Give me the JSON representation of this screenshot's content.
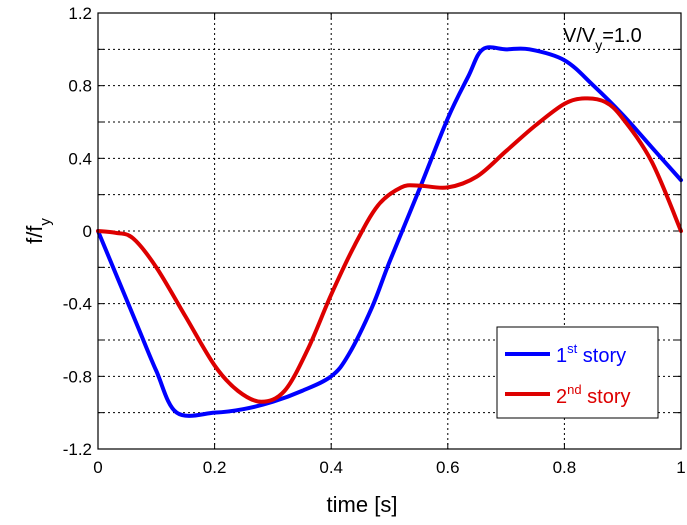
{
  "chart_data": {
    "type": "line",
    "title": "",
    "xlabel": {
      "main": "time [s]"
    },
    "ylabel": {
      "main": "f/f",
      "sub": "y"
    },
    "xlim": [
      0,
      1
    ],
    "ylim": [
      -1.2,
      1.2
    ],
    "xticks": [
      0,
      0.2,
      0.4,
      0.6,
      0.8,
      1
    ],
    "xtick_labels": [
      "0",
      "0.2",
      "0.4",
      "0.6",
      "0.8",
      "1"
    ],
    "yticks": [
      -1.2,
      -1.0,
      -0.8,
      -0.6,
      -0.4,
      -0.2,
      0,
      0.2,
      0.4,
      0.6,
      0.8,
      1.0,
      1.2
    ],
    "ytick_labels": [
      "-1.2",
      "",
      "-0.8",
      "",
      "-0.4",
      "",
      "0",
      "",
      "0.4",
      "",
      "0.8",
      "",
      "1.2"
    ],
    "grid": true,
    "legend_position": "bottom-right",
    "annotation": {
      "main": "V/V",
      "sub": "y",
      "rest": "=1.0"
    },
    "series": [
      {
        "name": "1st story",
        "label_main": "1",
        "label_sup": "st",
        "label_rest": " story",
        "color": "#0000ff",
        "x": [
          0,
          0.035,
          0.07,
          0.1,
          0.135,
          0.2,
          0.25,
          0.3,
          0.35,
          0.4,
          0.43,
          0.47,
          0.5,
          0.55,
          0.6,
          0.635,
          0.66,
          0.7,
          0.74,
          0.8,
          0.85,
          0.9,
          0.95,
          1.0
        ],
        "y": [
          0,
          -0.27,
          -0.54,
          -0.77,
          -1.0,
          -1.0,
          -0.98,
          -0.94,
          -0.88,
          -0.8,
          -0.68,
          -0.42,
          -0.17,
          0.22,
          0.62,
          0.85,
          1.0,
          1.0,
          1.0,
          0.94,
          0.8,
          0.64,
          0.46,
          0.28
        ]
      },
      {
        "name": "2nd story",
        "label_main": "2",
        "label_sup": "nd",
        "label_rest": " story",
        "color": "#dd0000",
        "x": [
          0,
          0.03,
          0.06,
          0.1,
          0.15,
          0.2,
          0.24,
          0.28,
          0.32,
          0.36,
          0.4,
          0.44,
          0.48,
          0.52,
          0.55,
          0.6,
          0.65,
          0.7,
          0.75,
          0.8,
          0.835,
          0.87,
          0.9,
          0.95,
          1.0
        ],
        "y": [
          0,
          -0.01,
          -0.04,
          -0.2,
          -0.47,
          -0.74,
          -0.88,
          -0.94,
          -0.88,
          -0.65,
          -0.35,
          -0.08,
          0.14,
          0.24,
          0.25,
          0.24,
          0.3,
          0.44,
          0.58,
          0.7,
          0.73,
          0.71,
          0.62,
          0.38,
          0.0
        ]
      }
    ]
  }
}
